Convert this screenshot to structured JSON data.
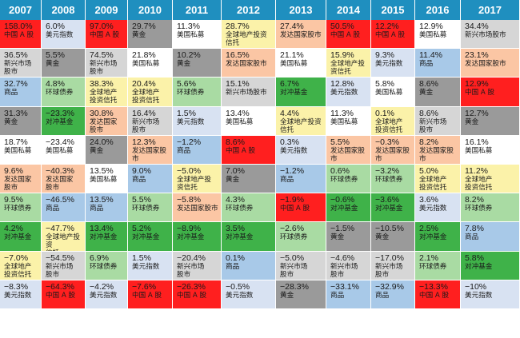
{
  "chart_data": {
    "type": "table",
    "colors": {
      "中国A股": "#ff1f1f",
      "美元指数": "#d8e2f2",
      "新兴市场股市": "#d6d6d6",
      "黄金": "#9a9a9a",
      "美国私募": "#ffffff",
      "全球地产投资信托": "#fbf2a9",
      "发达国家股市": "#fbc6a4",
      "商品": "#a8c9e8",
      "环球债券": "#a9dba3",
      "对冲基金": "#3fb249",
      "header": "#1f8fbf"
    },
    "columns": [
      {
        "year": "2007",
        "cells": [
          {
            "value": "158.0%",
            "asset": "中国 A 股",
            "key": "中国A股"
          },
          {
            "value": "36.5%",
            "asset": "新兴市场\n股市",
            "key": "新兴市场股市"
          },
          {
            "value": "32.7%",
            "asset": "商品",
            "key": "商品"
          },
          {
            "value": "31.3%",
            "asset": "黄金",
            "key": "黄金"
          },
          {
            "value": "18.7%",
            "asset": "美国私募",
            "key": "美国私募"
          },
          {
            "value": "9.6%",
            "asset": "发达国家\n股市",
            "key": "发达国家股市"
          },
          {
            "value": "9.5%",
            "asset": "环球债券",
            "key": "环球债券"
          },
          {
            "value": "4.2%",
            "asset": "对冲基金",
            "key": "对冲基金"
          },
          {
            "value": "−7.0%",
            "asset": "全球地产\n投资信托",
            "key": "全球地产投资信托"
          },
          {
            "value": "−8.3%",
            "asset": "美元指数",
            "key": "美元指数"
          }
        ]
      },
      {
        "year": "2008",
        "cells": [
          {
            "value": "6.0%",
            "asset": "美元指数",
            "key": "美元指数"
          },
          {
            "value": "5.5%",
            "asset": "黄金",
            "key": "黄金"
          },
          {
            "value": "4.8%",
            "asset": "环球债券",
            "key": "环球债券"
          },
          {
            "value": "−23.3%",
            "asset": "对冲基金",
            "key": "对冲基金"
          },
          {
            "value": "−23.4%",
            "asset": "美国私募",
            "key": "美国私募"
          },
          {
            "value": "−40.3%",
            "asset": "发达国家\n股市",
            "key": "发达国家股市"
          },
          {
            "value": "−46.5%",
            "asset": "商品",
            "key": "商品"
          },
          {
            "value": "−47.7%",
            "asset": "全球地产投资\n信托",
            "key": "全球地产投资信托"
          },
          {
            "value": "−54.5%",
            "asset": "新兴市场\n股市",
            "key": "新兴市场股市"
          },
          {
            "value": "−64.3%",
            "asset": "中国 A 股",
            "key": "中国A股"
          }
        ]
      },
      {
        "year": "2009",
        "cells": [
          {
            "value": "97.0%",
            "asset": "中国 A 股",
            "key": "中国A股"
          },
          {
            "value": "74.5%",
            "asset": "新兴市场\n股市",
            "key": "新兴市场股市"
          },
          {
            "value": "38.3%",
            "asset": "全球地产\n投资信托",
            "key": "全球地产投资信托"
          },
          {
            "value": "30.8%",
            "asset": "发达国家\n股市",
            "key": "发达国家股市"
          },
          {
            "value": "24.0%",
            "asset": "黄金",
            "key": "黄金"
          },
          {
            "value": "13.5%",
            "asset": "美国私募",
            "key": "美国私募"
          },
          {
            "value": "13.5%",
            "asset": "商品",
            "key": "商品"
          },
          {
            "value": "13.4%",
            "asset": "对冲基金",
            "key": "对冲基金"
          },
          {
            "value": "6.9%",
            "asset": "环球债券",
            "key": "环球债券"
          },
          {
            "value": "−4.2%",
            "asset": "美元指数",
            "key": "美元指数"
          }
        ]
      },
      {
        "year": "2010",
        "cells": [
          {
            "value": "29.7%",
            "asset": "黄金",
            "key": "黄金"
          },
          {
            "value": "21.8%",
            "asset": "美国私募",
            "key": "美国私募"
          },
          {
            "value": "20.4%",
            "asset": "全球地产\n投资信托",
            "key": "全球地产投资信托"
          },
          {
            "value": "16.4%",
            "asset": "新兴市场\n股市",
            "key": "新兴市场股市"
          },
          {
            "value": "12.3%",
            "asset": "发达国家股市",
            "key": "发达国家股市"
          },
          {
            "value": "9.0%",
            "asset": "商品",
            "key": "商品"
          },
          {
            "value": "5.5%",
            "asset": "环球债券",
            "key": "环球债券"
          },
          {
            "value": "5.2%",
            "asset": "对冲基金",
            "key": "对冲基金"
          },
          {
            "value": "1.5%",
            "asset": "美元指数",
            "key": "美元指数"
          },
          {
            "value": "−7.6%",
            "asset": "中国 A 股",
            "key": "中国A股"
          }
        ]
      },
      {
        "year": "2011",
        "cells": [
          {
            "value": "11.3%",
            "asset": "美国私募",
            "key": "美国私募"
          },
          {
            "value": "10.2%",
            "asset": "黄金",
            "key": "黄金"
          },
          {
            "value": "5.6%",
            "asset": "环球债券",
            "key": "环球债券"
          },
          {
            "value": "1.5%",
            "asset": "美元指数",
            "key": "美元指数"
          },
          {
            "value": "−1.2%",
            "asset": "商品",
            "key": "商品"
          },
          {
            "value": "−5.0%",
            "asset": "全球地产投\n资信托",
            "key": "全球地产投资信托"
          },
          {
            "value": "−5.8%",
            "asset": "发达国家股市",
            "key": "发达国家股市"
          },
          {
            "value": "−8.9%",
            "asset": "对冲基金",
            "key": "对冲基金"
          },
          {
            "value": "−20.4%",
            "asset": "新兴市场\n股市",
            "key": "新兴市场股市"
          },
          {
            "value": "−26.3%",
            "asset": "中国 A 股",
            "key": "中国A股"
          }
        ]
      },
      {
        "year": "2012",
        "cells": [
          {
            "value": "28.7%",
            "asset": "全球地产投资信托",
            "key": "全球地产投资信托"
          },
          {
            "value": "16.5%",
            "asset": "发达国家股市",
            "key": "发达国家股市"
          },
          {
            "value": "15.1%",
            "asset": "新兴市场股市",
            "key": "新兴市场股市"
          },
          {
            "value": "13.4%",
            "asset": "美国私募",
            "key": "美国私募"
          },
          {
            "value": "8.6%",
            "asset": "中国 A 股",
            "key": "中国A股"
          },
          {
            "value": "7.0%",
            "asset": "黄金",
            "key": "黄金"
          },
          {
            "value": "4.3%",
            "asset": "环球债券",
            "key": "环球债券"
          },
          {
            "value": "3.5%",
            "asset": "对冲基金",
            "key": "对冲基金"
          },
          {
            "value": "0.1%",
            "asset": "商品",
            "key": "商品"
          },
          {
            "value": "−0.5%",
            "asset": "美元指数",
            "key": "美元指数"
          }
        ]
      },
      {
        "year": "2013",
        "cells": [
          {
            "value": "27.4%",
            "asset": "发达国家股市",
            "key": "发达国家股市"
          },
          {
            "value": "21.1%",
            "asset": "美国私募",
            "key": "美国私募"
          },
          {
            "value": "6.7%",
            "asset": "对冲基金",
            "key": "对冲基金"
          },
          {
            "value": "4.4%",
            "asset": "全球地产投资\n信托",
            "key": "全球地产投资信托"
          },
          {
            "value": "0.3%",
            "asset": "美元指数",
            "key": "美元指数"
          },
          {
            "value": "−1.2%",
            "asset": "商品",
            "key": "商品"
          },
          {
            "value": "−1.9%",
            "asset": "中国 A 股",
            "key": "中国A股"
          },
          {
            "value": "−2.6%",
            "asset": "环球债券",
            "key": "环球债券"
          },
          {
            "value": "−5.0%",
            "asset": "新兴市场\n股市",
            "key": "新兴市场股市"
          },
          {
            "value": "−28.3%",
            "asset": "黄金",
            "key": "黄金"
          }
        ]
      },
      {
        "year": "2014",
        "cells": [
          {
            "value": "50.5%",
            "asset": "中国 A 股",
            "key": "中国A股"
          },
          {
            "value": "15.9%",
            "asset": "全球地产投\n资信托",
            "key": "全球地产投资信托"
          },
          {
            "value": "12.8%",
            "asset": "美元指数",
            "key": "美元指数"
          },
          {
            "value": "11.3%",
            "asset": "美国私募",
            "key": "美国私募"
          },
          {
            "value": "5.5%",
            "asset": "发达国家股市",
            "key": "发达国家股市"
          },
          {
            "value": "0.6%",
            "asset": "环球债券",
            "key": "环球债券"
          },
          {
            "value": "−0.6%",
            "asset": "对冲基金",
            "key": "对冲基金"
          },
          {
            "value": "−1.5%",
            "asset": "黄金",
            "key": "黄金"
          },
          {
            "value": "−4.6%",
            "asset": "新兴市场\n股市",
            "key": "新兴市场股市"
          },
          {
            "value": "−33.1%",
            "asset": "商品",
            "key": "商品"
          }
        ]
      },
      {
        "year": "2015",
        "cells": [
          {
            "value": "12.2%",
            "asset": "中国 A 股",
            "key": "中国A股"
          },
          {
            "value": "9.3%",
            "asset": "美元指数",
            "key": "美元指数"
          },
          {
            "value": "5.8%",
            "asset": "美国私募",
            "key": "美国私募"
          },
          {
            "value": "0.1%",
            "asset": "全球地产\n投资信托",
            "key": "全球地产投资信托"
          },
          {
            "value": "−0.3%",
            "asset": "发达国家股市",
            "key": "发达国家股市"
          },
          {
            "value": "−3.2%",
            "asset": "环球债券",
            "key": "环球债券"
          },
          {
            "value": "−3.6%",
            "asset": "对冲基金",
            "key": "对冲基金"
          },
          {
            "value": "−10.5%",
            "asset": "黄金",
            "key": "黄金"
          },
          {
            "value": "−17.0%",
            "asset": "新兴市场\n股市",
            "key": "新兴市场股市"
          },
          {
            "value": "−32.9%",
            "asset": "商品",
            "key": "商品"
          }
        ]
      },
      {
        "year": "2016",
        "cells": [
          {
            "value": "12.9%",
            "asset": "美国私募",
            "key": "美国私募"
          },
          {
            "value": "11.4%",
            "asset": "商品",
            "key": "商品"
          },
          {
            "value": "8.6%",
            "asset": "黄金",
            "key": "黄金"
          },
          {
            "value": "8.6%",
            "asset": "新兴市场\n股市",
            "key": "新兴市场股市"
          },
          {
            "value": "8.2%",
            "asset": "发达国家股市",
            "key": "发达国家股市"
          },
          {
            "value": "5.0%",
            "asset": "全球地产\n投资信托",
            "key": "全球地产投资信托"
          },
          {
            "value": "3.6%",
            "asset": "美元指数",
            "key": "美元指数"
          },
          {
            "value": "2.5%",
            "asset": "对冲基金",
            "key": "对冲基金"
          },
          {
            "value": "2.1%",
            "asset": "环球债券",
            "key": "环球债券"
          },
          {
            "value": "−13.3%",
            "asset": "中国 A 股",
            "key": "中国A股"
          }
        ]
      },
      {
        "year": "2017",
        "cells": [
          {
            "value": "34.4%",
            "asset": "新兴市场股市",
            "key": "新兴市场股市"
          },
          {
            "value": "23.1%",
            "asset": "发达国家股市",
            "key": "发达国家股市"
          },
          {
            "value": "12.9%",
            "asset": "中国 A 股",
            "key": "中国A股"
          },
          {
            "value": "12.7%",
            "asset": "黄金",
            "key": "黄金"
          },
          {
            "value": "16.1%",
            "asset": "美国私募",
            "key": "美国私募"
          },
          {
            "value": "11.2%",
            "asset": "全球地产\n投资信托",
            "key": "全球地产投资信托"
          },
          {
            "value": "8.2%",
            "asset": "环球债券",
            "key": "环球债券"
          },
          {
            "value": "7.8%",
            "asset": "商品",
            "key": "商品"
          },
          {
            "value": "5.8%",
            "asset": "对冲基金",
            "key": "对冲基金"
          },
          {
            "value": "−10%",
            "asset": "美元指数",
            "key": "美元指数"
          }
        ]
      }
    ]
  }
}
